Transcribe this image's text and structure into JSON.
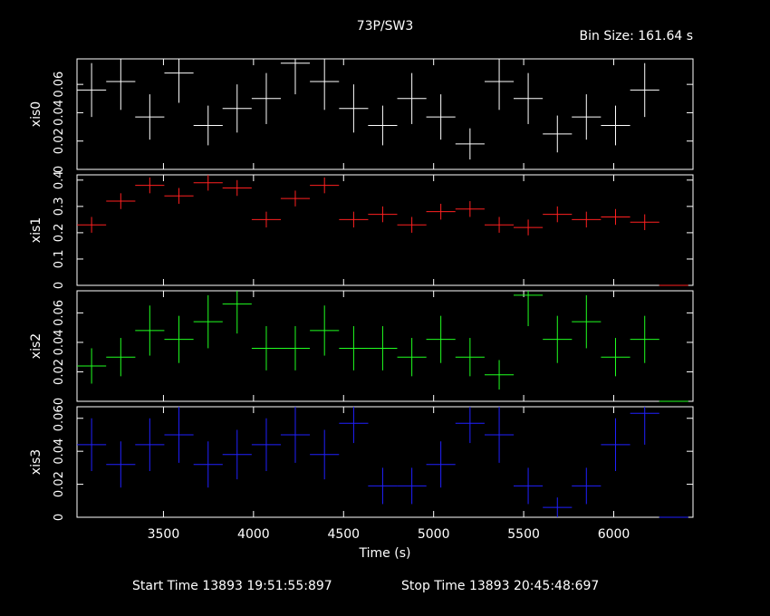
{
  "chart_data": {
    "type": "scatter",
    "title": "73P/SW3",
    "bin_size_label": "Bin Size: 161.64 s",
    "xlabel": "Time (s)",
    "xlim": [
      3020,
      6440
    ],
    "x_ticks": [
      3500,
      4000,
      4500,
      5000,
      5500,
      6000
    ],
    "x_tick_labels": [
      "3500",
      "4000",
      "4500",
      "5000",
      "5500",
      "6000"
    ],
    "bin_half_width": 80.82,
    "start_time_label": "Start Time 13893 19:51:55:897",
    "stop_time_label": "Stop Time 13893 20:45:48:697",
    "panels": [
      {
        "ylabel": "xis0",
        "color": "#ffffff",
        "ylim": [
          0,
          0.078
        ],
        "y_ticks": [
          0,
          0.02,
          0.04,
          0.06
        ],
        "y_tick_labels": [
          "0",
          "0.02",
          "0.04",
          "0.06"
        ],
        "points": [
          {
            "x": 3101,
            "y": 0.056,
            "err": 0.019
          },
          {
            "x": 3263,
            "y": 0.062,
            "err": 0.02
          },
          {
            "x": 3424,
            "y": 0.037,
            "err": 0.016
          },
          {
            "x": 3586,
            "y": 0.068,
            "err": 0.021
          },
          {
            "x": 3748,
            "y": 0.031,
            "err": 0.014
          },
          {
            "x": 3909,
            "y": 0.043,
            "err": 0.017
          },
          {
            "x": 4071,
            "y": 0.05,
            "err": 0.018
          },
          {
            "x": 4232,
            "y": 0.075,
            "err": 0.022
          },
          {
            "x": 4394,
            "y": 0.062,
            "err": 0.02
          },
          {
            "x": 4556,
            "y": 0.043,
            "err": 0.017
          },
          {
            "x": 4717,
            "y": 0.031,
            "err": 0.014
          },
          {
            "x": 4879,
            "y": 0.05,
            "err": 0.018
          },
          {
            "x": 5040,
            "y": 0.037,
            "err": 0.016
          },
          {
            "x": 5202,
            "y": 0.018,
            "err": 0.011
          },
          {
            "x": 5364,
            "y": 0.062,
            "err": 0.02
          },
          {
            "x": 5525,
            "y": 0.05,
            "err": 0.018
          },
          {
            "x": 5687,
            "y": 0.025,
            "err": 0.013
          },
          {
            "x": 5848,
            "y": 0.037,
            "err": 0.016
          },
          {
            "x": 6010,
            "y": 0.031,
            "err": 0.014
          },
          {
            "x": 6172,
            "y": 0.056,
            "err": 0.019
          },
          {
            "x": 6333,
            "y": 0.0,
            "err": 0.0
          }
        ]
      },
      {
        "ylabel": "xis1",
        "color": "#ff2020",
        "ylim": [
          0,
          0.42
        ],
        "y_ticks": [
          0,
          0.1,
          0.2,
          0.3,
          0.4
        ],
        "y_tick_labels": [
          "0",
          "0.1",
          "0.2",
          "0.3",
          "0.4"
        ],
        "points": [
          {
            "x": 3101,
            "y": 0.23,
            "err": 0.03
          },
          {
            "x": 3263,
            "y": 0.32,
            "err": 0.03
          },
          {
            "x": 3424,
            "y": 0.38,
            "err": 0.03
          },
          {
            "x": 3586,
            "y": 0.34,
            "err": 0.03
          },
          {
            "x": 3748,
            "y": 0.39,
            "err": 0.03
          },
          {
            "x": 3909,
            "y": 0.37,
            "err": 0.03
          },
          {
            "x": 4071,
            "y": 0.25,
            "err": 0.03
          },
          {
            "x": 4232,
            "y": 0.33,
            "err": 0.03
          },
          {
            "x": 4394,
            "y": 0.38,
            "err": 0.03
          },
          {
            "x": 4556,
            "y": 0.25,
            "err": 0.03
          },
          {
            "x": 4717,
            "y": 0.27,
            "err": 0.03
          },
          {
            "x": 4879,
            "y": 0.23,
            "err": 0.03
          },
          {
            "x": 5040,
            "y": 0.28,
            "err": 0.03
          },
          {
            "x": 5202,
            "y": 0.29,
            "err": 0.03
          },
          {
            "x": 5364,
            "y": 0.23,
            "err": 0.03
          },
          {
            "x": 5525,
            "y": 0.22,
            "err": 0.03
          },
          {
            "x": 5687,
            "y": 0.27,
            "err": 0.03
          },
          {
            "x": 5848,
            "y": 0.25,
            "err": 0.03
          },
          {
            "x": 6010,
            "y": 0.26,
            "err": 0.03
          },
          {
            "x": 6172,
            "y": 0.24,
            "err": 0.03
          },
          {
            "x": 6333,
            "y": 0.0,
            "err": 0.0
          }
        ]
      },
      {
        "ylabel": "xis2",
        "color": "#20ff20",
        "ylim": [
          0,
          0.075
        ],
        "y_ticks": [
          0,
          0.02,
          0.04,
          0.06
        ],
        "y_tick_labels": [
          "0",
          "0.02",
          "0.04",
          "0.06"
        ],
        "points": [
          {
            "x": 3101,
            "y": 0.024,
            "err": 0.012
          },
          {
            "x": 3263,
            "y": 0.03,
            "err": 0.013
          },
          {
            "x": 3424,
            "y": 0.048,
            "err": 0.017
          },
          {
            "x": 3586,
            "y": 0.042,
            "err": 0.016
          },
          {
            "x": 3748,
            "y": 0.054,
            "err": 0.018
          },
          {
            "x": 3909,
            "y": 0.066,
            "err": 0.02
          },
          {
            "x": 4071,
            "y": 0.036,
            "err": 0.015
          },
          {
            "x": 4232,
            "y": 0.036,
            "err": 0.015
          },
          {
            "x": 4394,
            "y": 0.048,
            "err": 0.017
          },
          {
            "x": 4556,
            "y": 0.036,
            "err": 0.015
          },
          {
            "x": 4717,
            "y": 0.036,
            "err": 0.015
          },
          {
            "x": 4879,
            "y": 0.03,
            "err": 0.013
          },
          {
            "x": 5040,
            "y": 0.042,
            "err": 0.016
          },
          {
            "x": 5202,
            "y": 0.03,
            "err": 0.013
          },
          {
            "x": 5364,
            "y": 0.018,
            "err": 0.01
          },
          {
            "x": 5525,
            "y": 0.072,
            "err": 0.021
          },
          {
            "x": 5687,
            "y": 0.042,
            "err": 0.016
          },
          {
            "x": 5848,
            "y": 0.054,
            "err": 0.018
          },
          {
            "x": 6010,
            "y": 0.03,
            "err": 0.013
          },
          {
            "x": 6172,
            "y": 0.042,
            "err": 0.016
          },
          {
            "x": 6333,
            "y": 0.0,
            "err": 0.0
          }
        ]
      },
      {
        "ylabel": "xis3",
        "color": "#2020ff",
        "ylim": [
          0,
          0.067
        ],
        "y_ticks": [
          0,
          0.02,
          0.04,
          0.06
        ],
        "y_tick_labels": [
          "0",
          "0.02",
          "0.04",
          "0.06"
        ],
        "points": [
          {
            "x": 3101,
            "y": 0.044,
            "err": 0.016
          },
          {
            "x": 3263,
            "y": 0.032,
            "err": 0.014
          },
          {
            "x": 3424,
            "y": 0.044,
            "err": 0.016
          },
          {
            "x": 3586,
            "y": 0.05,
            "err": 0.017
          },
          {
            "x": 3748,
            "y": 0.032,
            "err": 0.014
          },
          {
            "x": 3909,
            "y": 0.038,
            "err": 0.015
          },
          {
            "x": 4071,
            "y": 0.044,
            "err": 0.016
          },
          {
            "x": 4232,
            "y": 0.05,
            "err": 0.017
          },
          {
            "x": 4394,
            "y": 0.038,
            "err": 0.015
          },
          {
            "x": 4556,
            "y": 0.057,
            "err": 0.012
          },
          {
            "x": 4717,
            "y": 0.019,
            "err": 0.011
          },
          {
            "x": 4879,
            "y": 0.019,
            "err": 0.011
          },
          {
            "x": 5040,
            "y": 0.032,
            "err": 0.014
          },
          {
            "x": 5202,
            "y": 0.057,
            "err": 0.012
          },
          {
            "x": 5364,
            "y": 0.05,
            "err": 0.017
          },
          {
            "x": 5525,
            "y": 0.019,
            "err": 0.011
          },
          {
            "x": 5687,
            "y": 0.006,
            "err": 0.006
          },
          {
            "x": 5848,
            "y": 0.019,
            "err": 0.011
          },
          {
            "x": 6010,
            "y": 0.044,
            "err": 0.016
          },
          {
            "x": 6172,
            "y": 0.063,
            "err": 0.019
          },
          {
            "x": 6333,
            "y": 0.0,
            "err": 0.0
          }
        ]
      }
    ]
  }
}
